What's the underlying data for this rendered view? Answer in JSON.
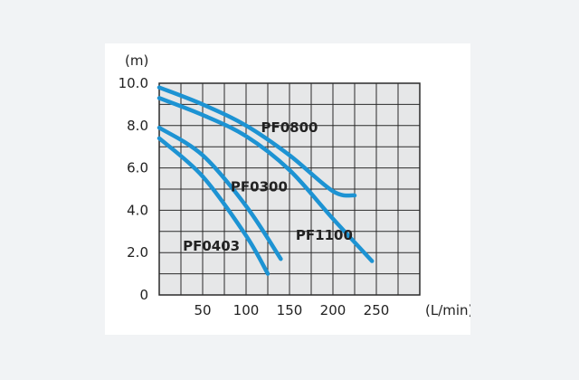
{
  "chart_data": {
    "type": "line",
    "title": "",
    "ylabel": "(m)",
    "xlabel": "(L/min)",
    "xlim": [
      0,
      300
    ],
    "ylim": [
      0,
      10
    ],
    "x_ticks": [
      "50",
      "100",
      "150",
      "200",
      "250"
    ],
    "x_tick_values": [
      50,
      100,
      150,
      200,
      250
    ],
    "y_ticks": [
      "0",
      "2.0",
      "4.0",
      "6.0",
      "8.0",
      "10.0"
    ],
    "y_tick_values": [
      0,
      2,
      4,
      6,
      8,
      10
    ],
    "grid": true,
    "series": [
      {
        "name": "PF0800",
        "x": [
          0,
          50,
          100,
          150,
          200,
          225
        ],
        "y": [
          9.8,
          9.0,
          8.0,
          6.6,
          4.9,
          4.7
        ]
      },
      {
        "name": "PF1100",
        "x": [
          0,
          50,
          100,
          150,
          200,
          245
        ],
        "y": [
          9.3,
          8.5,
          7.5,
          5.9,
          3.6,
          1.6
        ]
      },
      {
        "name": "PF0300",
        "x": [
          0,
          50,
          100,
          140
        ],
        "y": [
          7.9,
          6.6,
          4.2,
          1.7
        ]
      },
      {
        "name": "PF0403",
        "x": [
          0,
          50,
          100,
          125
        ],
        "y": [
          7.4,
          5.6,
          2.8,
          1.0
        ]
      }
    ],
    "line_color": "#1d93d3",
    "plot_background": "#e6e7e8"
  }
}
